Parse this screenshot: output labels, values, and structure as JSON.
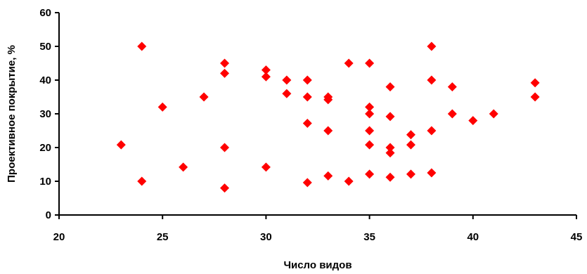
{
  "chart_data": {
    "type": "scatter",
    "title": "",
    "xlabel": "Число видов",
    "ylabel": "Проективное покрытие, %",
    "xlim": [
      20,
      45
    ],
    "ylim": [
      0,
      60
    ],
    "xticks": [
      20,
      25,
      30,
      35,
      40,
      45
    ],
    "yticks": [
      0,
      10,
      20,
      30,
      40,
      50,
      60
    ],
    "grid": false,
    "legend": "none",
    "marker": "diamond",
    "color": "#ff0000",
    "points": [
      [
        23,
        20.8
      ],
      [
        24,
        50
      ],
      [
        24,
        10
      ],
      [
        25,
        32
      ],
      [
        26,
        14.2
      ],
      [
        27,
        35
      ],
      [
        28,
        45
      ],
      [
        28,
        42
      ],
      [
        28,
        20
      ],
      [
        28,
        8
      ],
      [
        30,
        43
      ],
      [
        30,
        41
      ],
      [
        30,
        14.2
      ],
      [
        31,
        40
      ],
      [
        31,
        36
      ],
      [
        32,
        40
      ],
      [
        32,
        35
      ],
      [
        32,
        27.2
      ],
      [
        32,
        9.6
      ],
      [
        33,
        35
      ],
      [
        33,
        34.2
      ],
      [
        33,
        25
      ],
      [
        33,
        11.6
      ],
      [
        34,
        45
      ],
      [
        34,
        10
      ],
      [
        35,
        45
      ],
      [
        35,
        32
      ],
      [
        35,
        30
      ],
      [
        35,
        25
      ],
      [
        35,
        20.8
      ],
      [
        35,
        12.1
      ],
      [
        36,
        38
      ],
      [
        36,
        29.2
      ],
      [
        36,
        20
      ],
      [
        36,
        18.4
      ],
      [
        36,
        11.2
      ],
      [
        37,
        23.8
      ],
      [
        37,
        20.8
      ],
      [
        37,
        12.1
      ],
      [
        38,
        50
      ],
      [
        38,
        40
      ],
      [
        38,
        25
      ],
      [
        38,
        12.5
      ],
      [
        39,
        38
      ],
      [
        39,
        30
      ],
      [
        40,
        28
      ],
      [
        41,
        30
      ],
      [
        43,
        39.2
      ],
      [
        43,
        35
      ]
    ]
  }
}
